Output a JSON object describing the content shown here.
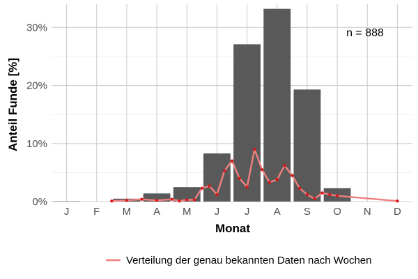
{
  "chart_data": {
    "type": "bar",
    "xlabel": "Monat",
    "ylabel": "Anteil Funde [%]",
    "categories": [
      "J",
      "F",
      "M",
      "A",
      "M",
      "J",
      "J",
      "A",
      "S",
      "O",
      "N",
      "D"
    ],
    "values": [
      0.05,
      0.0,
      0.5,
      1.4,
      2.5,
      8.3,
      27.1,
      33.2,
      19.3,
      2.3,
      0.0,
      0.0
    ],
    "ylim": [
      0,
      34
    ],
    "yticks": [
      0,
      10,
      20,
      30
    ],
    "ytick_labels": [
      "0%",
      "10%",
      "20%",
      "30%"
    ],
    "grid": true,
    "annotation": "n = 888",
    "bar_color": "#595959",
    "line_series": {
      "name": "Verteilung der genau bekannten Daten nach Wochen",
      "color": "#f08080",
      "point_color": "#d7191c",
      "x": [
        2.5,
        3.0,
        3.5,
        4.0,
        4.5,
        4.75,
        5.0,
        5.25,
        5.5,
        5.75,
        6.0,
        6.25,
        6.5,
        6.75,
        7.0,
        7.25,
        7.5,
        7.75,
        8.0,
        8.25,
        8.5,
        8.75,
        9.0,
        9.25,
        9.5,
        9.75,
        10.0,
        12.0
      ],
      "y": [
        0.1,
        0.2,
        0.4,
        0.2,
        0.4,
        0.1,
        0.3,
        0.3,
        2.3,
        2.7,
        1.2,
        5.3,
        7.0,
        4.0,
        2.5,
        9.0,
        5.5,
        3.3,
        3.8,
        6.2,
        4.5,
        2.3,
        1.2,
        0.5,
        1.5,
        1.2,
        1.0,
        0.1
      ]
    },
    "legend": {
      "position": "bottom",
      "label": "Verteilung der genau bekannten Daten nach Wochen"
    }
  }
}
